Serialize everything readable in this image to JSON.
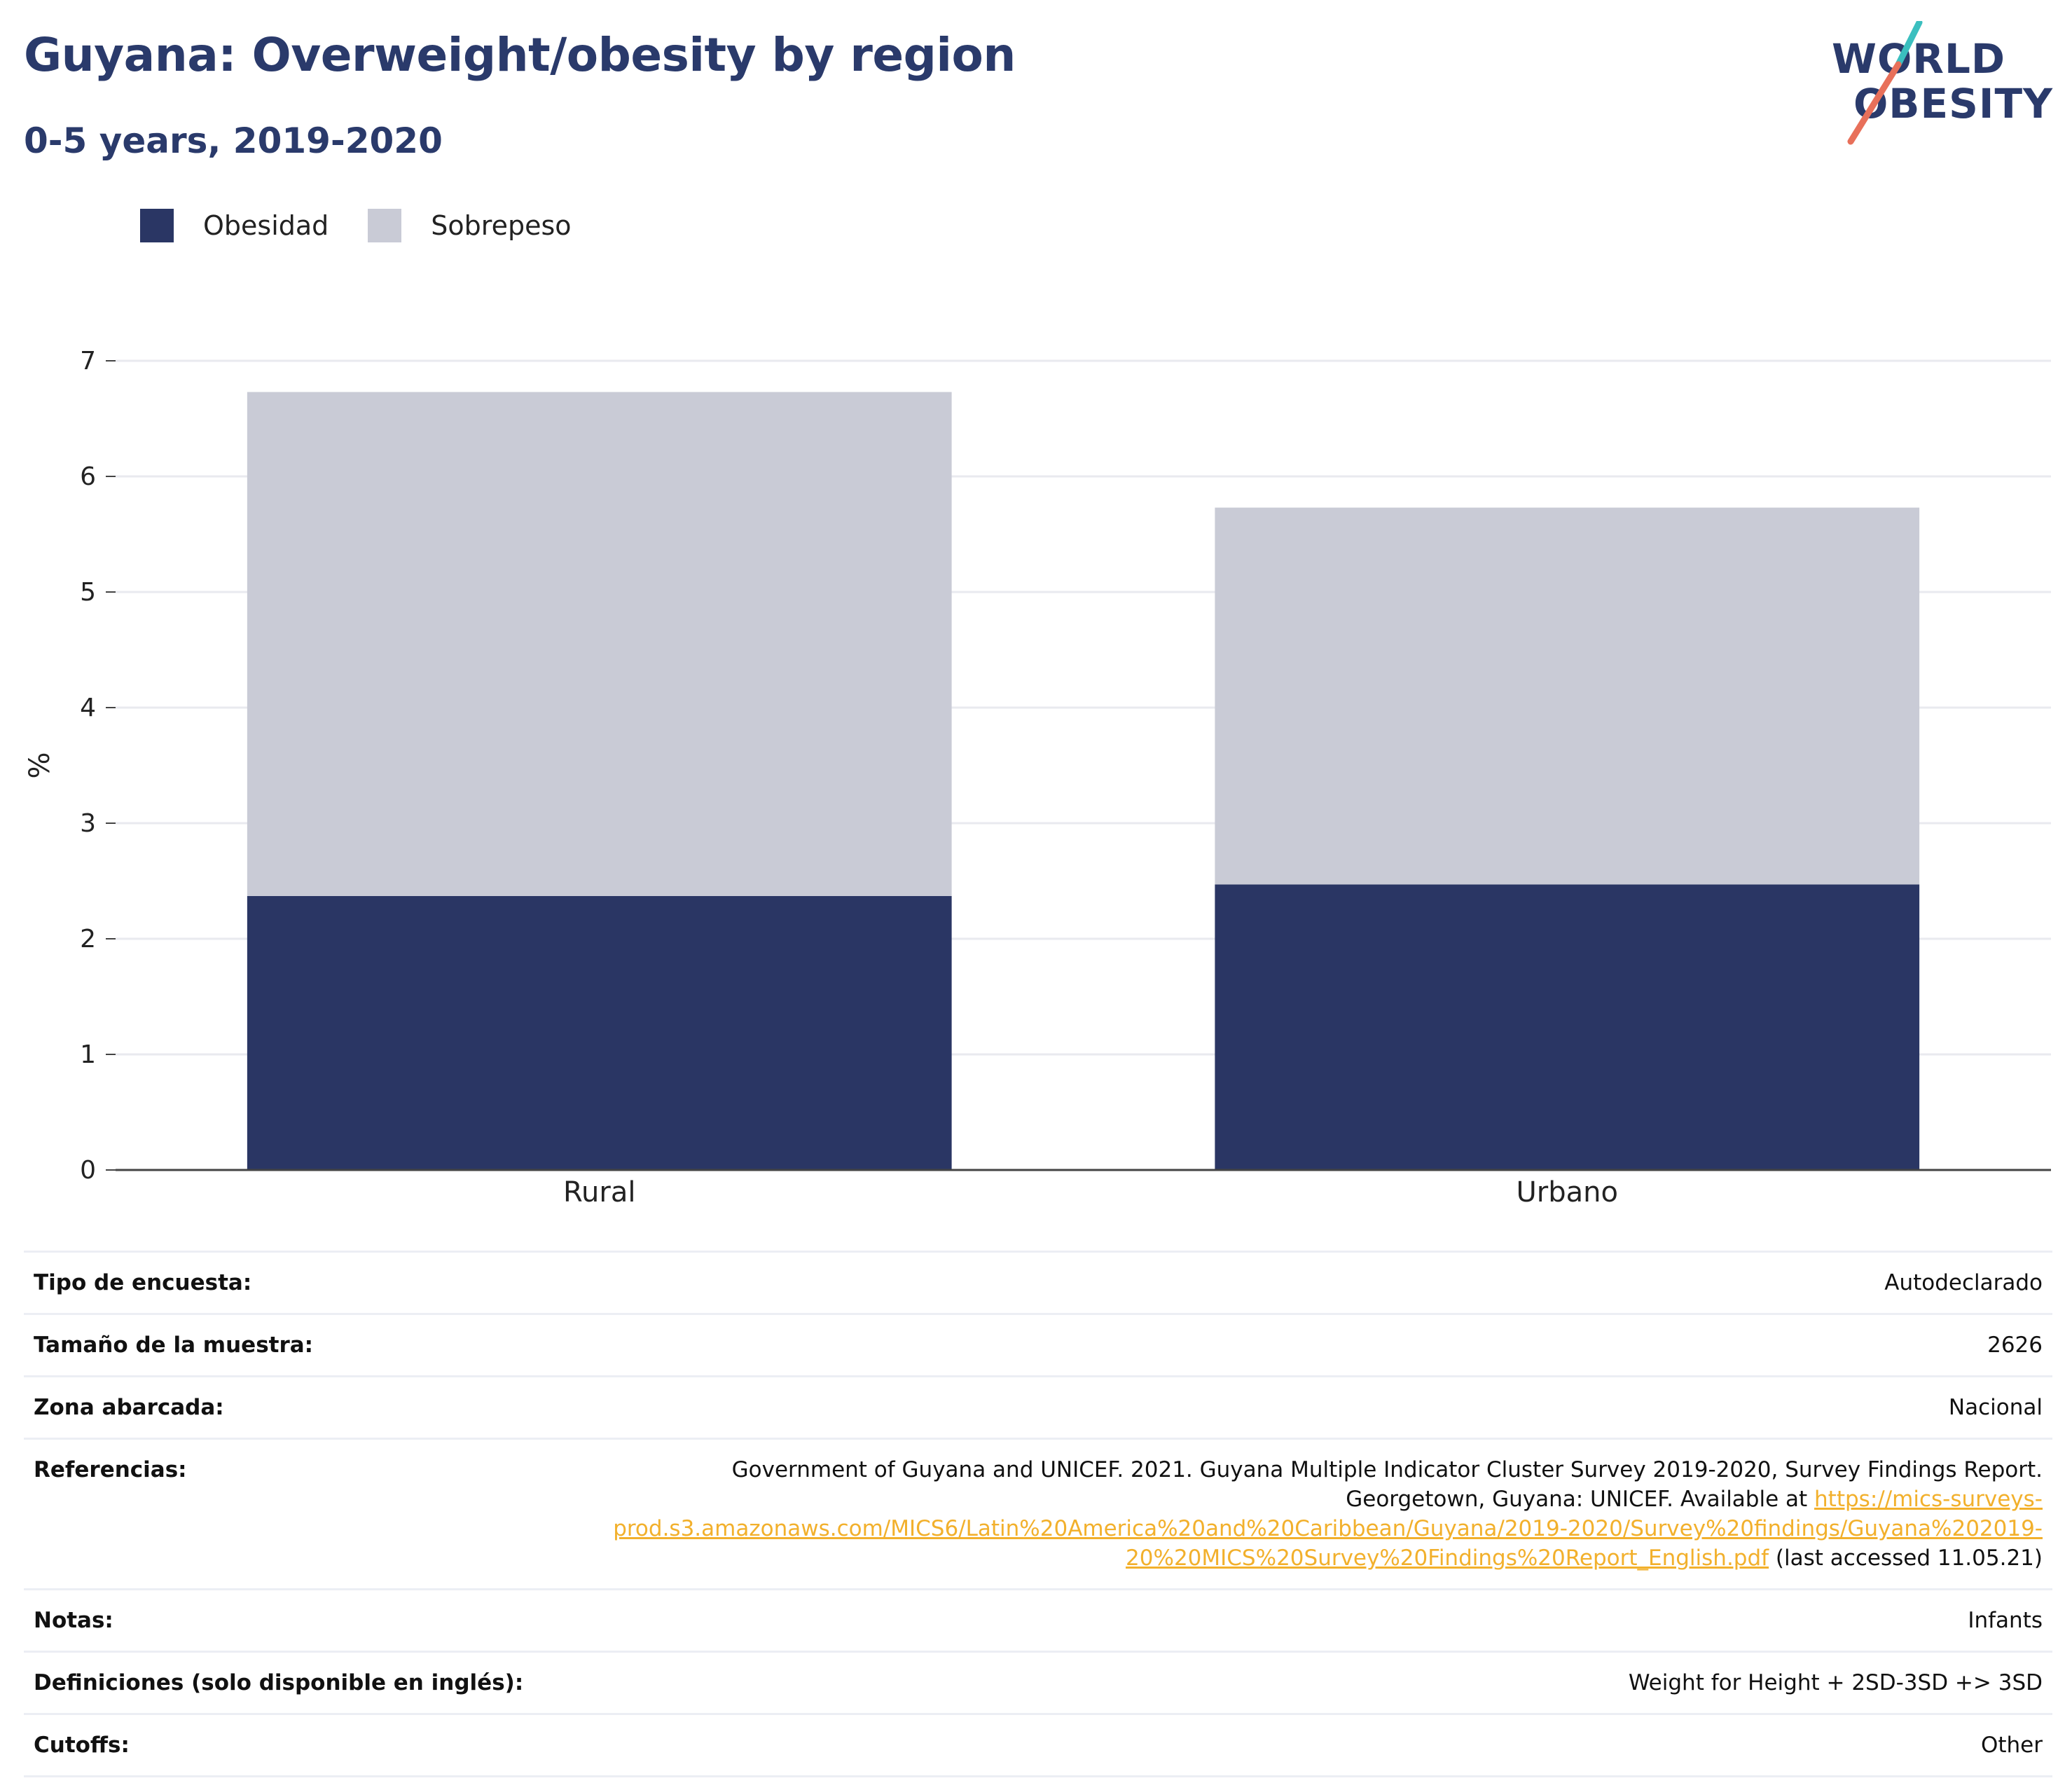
{
  "header": {
    "title": "Guyana: Overweight/obesity by region",
    "subtitle": "0-5 years, 2019-2020"
  },
  "logo": {
    "line1": "WORLD",
    "line2": "OBESITY"
  },
  "colors": {
    "obesidad": "#2a3664",
    "sobrepeso": "#c9cbd6",
    "title": "#2a3a6b",
    "link": "#f2b02c"
  },
  "legend": [
    {
      "label": "Obesidad",
      "color": "#2a3664"
    },
    {
      "label": "Sobrepeso",
      "color": "#c9cbd6"
    }
  ],
  "chart_data": {
    "type": "bar",
    "stacked": true,
    "categories": [
      "Rural",
      "Urbano"
    ],
    "series": [
      {
        "name": "Obesidad",
        "values": [
          2.37,
          2.47
        ]
      },
      {
        "name": "Sobrepeso",
        "values": [
          4.36,
          3.26
        ]
      }
    ],
    "ylabel": "%",
    "ylim": [
      0,
      7
    ],
    "yticks": [
      0,
      1,
      2,
      3,
      4,
      5,
      6,
      7
    ],
    "grid": true,
    "legend_position": "top-left"
  },
  "info": {
    "rows": [
      {
        "key": "Tipo de encuesta:",
        "value": "Autodeclarado"
      },
      {
        "key": "Tamaño de la muestra:",
        "value": "2626"
      },
      {
        "key": "Zona abarcada:",
        "value": "Nacional"
      },
      {
        "key": "Referencias:",
        "value_pre": "Government of Guyana and UNICEF. 2021. Guyana Multiple Indicator Cluster Survey 2019-2020, Survey Findings Report. Georgetown, Guyana: UNICEF. Available at ",
        "value_link": "https://mics-surveys-prod.s3.amazonaws.com/MICS6/Latin%20America%20and%20Caribbean/Guyana/2019-2020/Survey%20findings/Guyana%202019-20%20MICS%20Survey%20Findings%20Report_English.pdf",
        "value_post": " (last accessed 11.05.21)"
      },
      {
        "key": "Notas:",
        "value": "Infants"
      },
      {
        "key": "Definiciones (solo disponible en inglés):",
        "value": "Weight for Height + 2SD-3SD +> 3SD"
      },
      {
        "key": "Cutoffs:",
        "value": "Other"
      }
    ]
  }
}
